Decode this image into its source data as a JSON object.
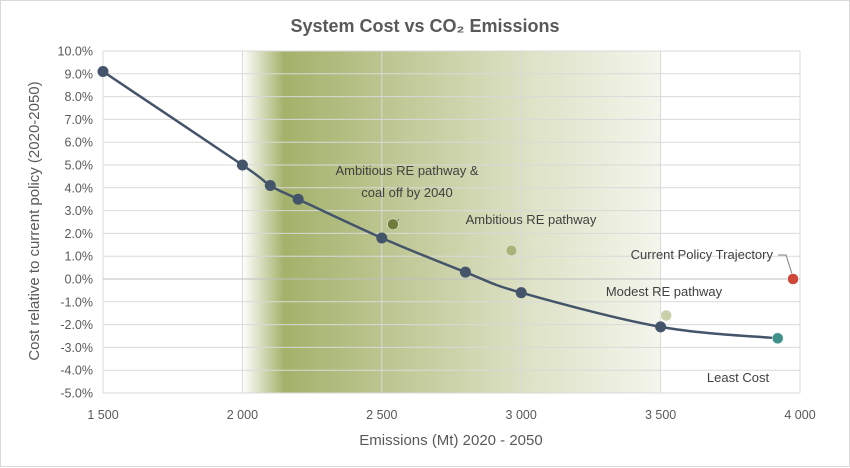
{
  "chart_data": {
    "type": "scatter",
    "title": "System Cost vs CO₂ Emissions",
    "xlabel": "Emissions (Mt) 2020 - 2050",
    "ylabel": "Cost relative to current policy (2020-2050)",
    "xlim": [
      1500,
      4000
    ],
    "ylim": [
      -5.0,
      10.0
    ],
    "x_tick_labels": [
      "1 500",
      "2 000",
      "2 500",
      "3 000",
      "3 500",
      "4 000"
    ],
    "y_tick_labels": [
      "10.0%",
      "9.0%",
      "8.0%",
      "7.0%",
      "6.0%",
      "5.0%",
      "4.0%",
      "3.0%",
      "2.0%",
      "1.0%",
      "0.0%",
      "-1.0%",
      "-2.0%",
      "-3.0%",
      "-4.0%",
      "-5.0%"
    ],
    "grid": true,
    "background_band": {
      "x_from": 2000,
      "x_to": 3500,
      "color": "#9aaa5c"
    },
    "series": [
      {
        "style": "line-with-markers",
        "color": "#44546a",
        "points": [
          {
            "x": 1500,
            "y": 9.1
          },
          {
            "x": 2000,
            "y": 5.0
          },
          {
            "x": 2100,
            "y": 4.1
          },
          {
            "x": 2200,
            "y": 3.5
          },
          {
            "x": 2500,
            "y": 1.8
          },
          {
            "x": 2800,
            "y": 0.3
          },
          {
            "x": 3000,
            "y": -0.6
          },
          {
            "x": 3500,
            "y": -2.1
          },
          {
            "x": 3920,
            "y": -2.6
          }
        ]
      }
    ],
    "scenarios": [
      {
        "label_lines": [
          "Ambitious RE pathway &",
          "coal off by 2040"
        ],
        "x": 2540,
        "y": 2.4,
        "color": "#6f7d3c"
      },
      {
        "label_lines": [
          "Ambitious RE pathway"
        ],
        "x": 2965,
        "y": 1.25,
        "color": "#a9b47a"
      },
      {
        "label_lines": [
          "Current Policy Trajectory"
        ],
        "x": 3975,
        "y": 0.0,
        "color": "#d0473a"
      },
      {
        "label_lines": [
          "Modest RE pathway"
        ],
        "x": 3520,
        "y": -1.6,
        "color": "#c9d0a9"
      },
      {
        "label_lines": [
          "Least Cost"
        ],
        "x": 3920,
        "y": -2.6,
        "color": "#3f8f8a"
      }
    ]
  }
}
